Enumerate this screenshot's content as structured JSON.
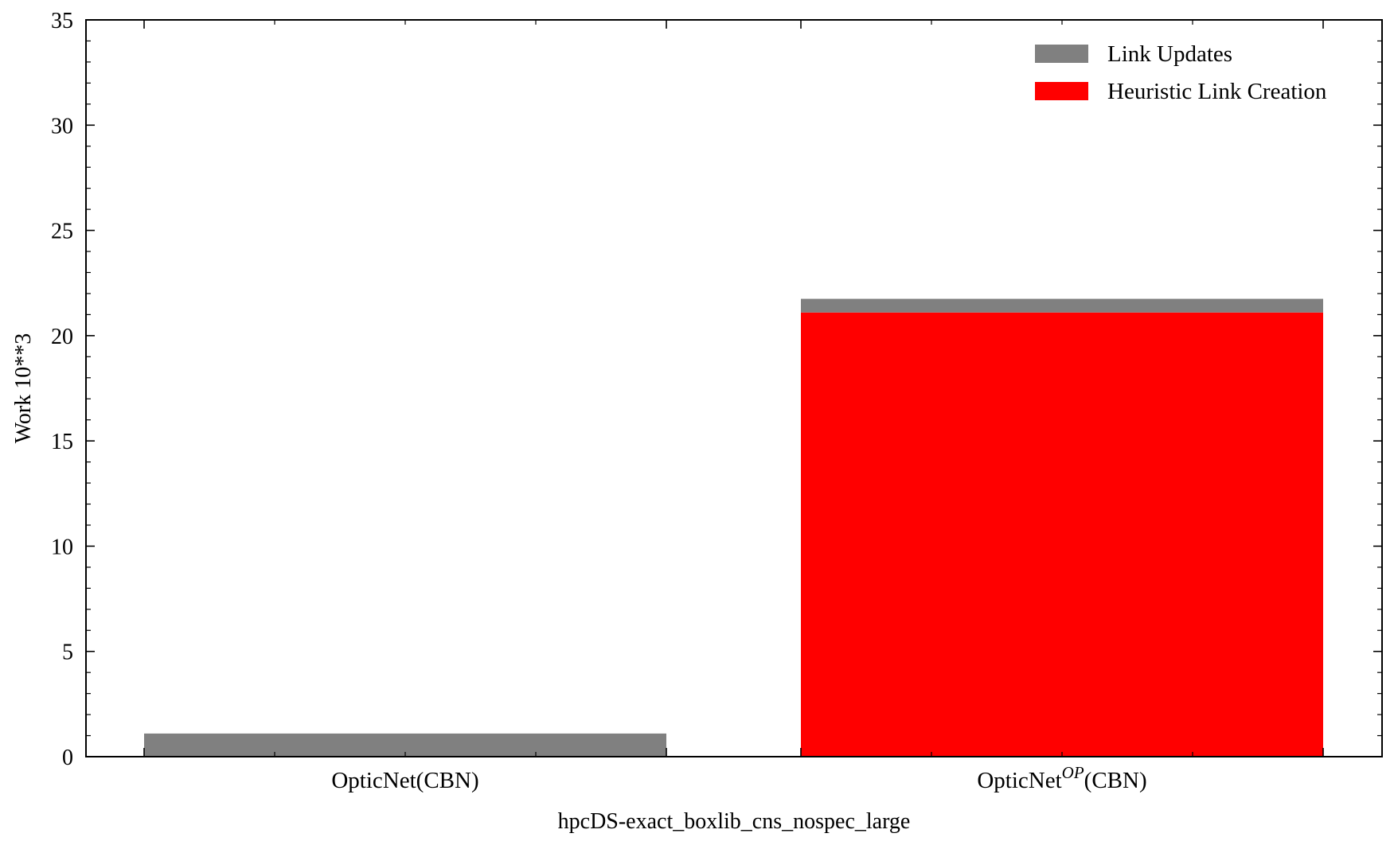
{
  "chart_data": {
    "type": "bar",
    "stacked": true,
    "categories": [
      "OpticNet(CBN)",
      "OpticNet$^{OP}$(CBN)"
    ],
    "category_display": [
      {
        "base": "OpticNet",
        "sup": "",
        "suffix": "(CBN)"
      },
      {
        "base": "OpticNet",
        "sup": "OP",
        "suffix": "(CBN)"
      }
    ],
    "series": [
      {
        "name": "Heuristic Link Creation",
        "values": [
          0,
          21.1
        ],
        "color": "#ff0000"
      },
      {
        "name": "Link Updates",
        "values": [
          1.1,
          0.65
        ],
        "color": "#808080"
      }
    ],
    "legend_order": [
      "Link Updates",
      "Heuristic Link Creation"
    ],
    "legend_position": "top-right",
    "xlabel": "hpcDS-exact_boxlib_cns_nospec_large",
    "ylabel": "Work 10**3",
    "ylim": [
      0,
      35
    ],
    "yticks": [
      0,
      5,
      10,
      15,
      20,
      25,
      30,
      35
    ],
    "grid": false
  }
}
